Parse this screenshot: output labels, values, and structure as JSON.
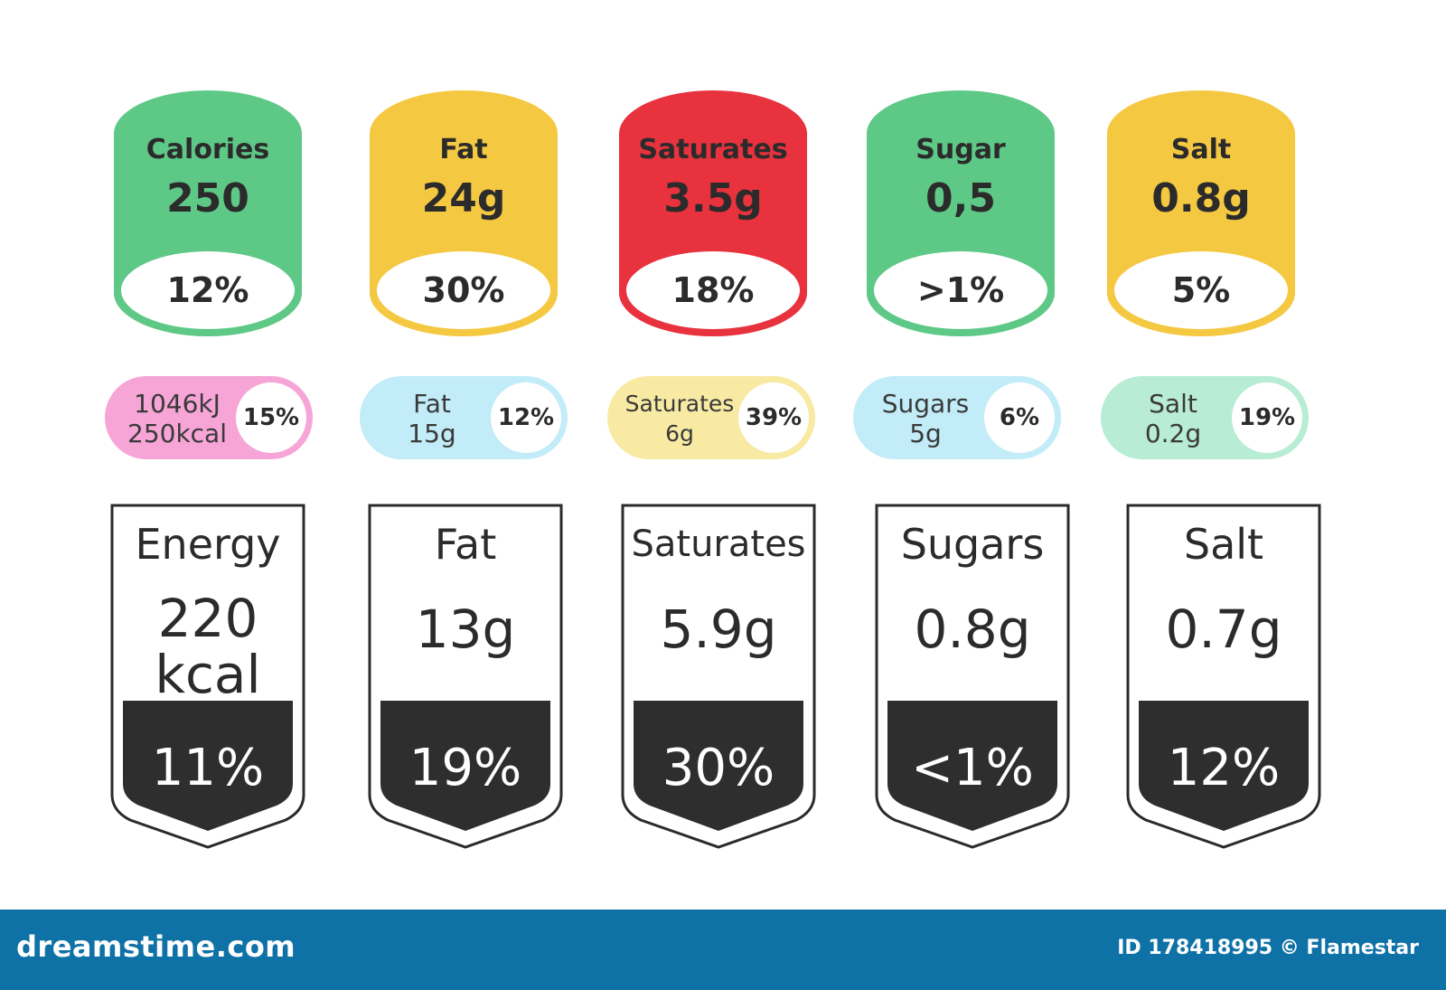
{
  "colors": {
    "green": "#5ec886",
    "yellow": "#f5c842",
    "red": "#e8323e",
    "pink": "#f6a5d6",
    "light_blue": "#c2ecf8",
    "light_yellow": "#f8eaa3",
    "mint": "#b8ecd4",
    "dark_fill": "#2e2e2e",
    "footer_blue": "#0f72a6"
  },
  "colored_labels": [
    {
      "name": "Calories",
      "value": "250",
      "percent": "12%",
      "color": "green"
    },
    {
      "name": "Fat",
      "value": "24g",
      "percent": "30%",
      "color": "yellow"
    },
    {
      "name": "Saturates",
      "value": "3.5g",
      "percent": "18%",
      "color": "red"
    },
    {
      "name": "Sugar",
      "value": "0,5",
      "percent": ">1%",
      "color": "green"
    },
    {
      "name": "Salt",
      "value": "0.8g",
      "percent": "5%",
      "color": "yellow"
    }
  ],
  "pill_labels": [
    {
      "line1": "1046kJ",
      "line2": "250kcal",
      "percent": "15%",
      "color": "pink"
    },
    {
      "line1": "Fat",
      "line2": "15g",
      "percent": "12%",
      "color": "light_blue"
    },
    {
      "line1": "Saturates",
      "line2": "6g",
      "percent": "39%",
      "color": "light_yellow"
    },
    {
      "line1": "Sugars",
      "line2": "5g",
      "percent": "6%",
      "color": "light_blue"
    },
    {
      "line1": "Salt",
      "line2": "0.2g",
      "percent": "19%",
      "color": "mint"
    }
  ],
  "outline_labels": [
    {
      "name": "Energy",
      "value_line1": "220",
      "value_line2": "kcal",
      "percent": "11%"
    },
    {
      "name": "Fat",
      "value_line1": "13g",
      "value_line2": "",
      "percent": "19%"
    },
    {
      "name": "Saturates",
      "value_line1": "5.9g",
      "value_line2": "",
      "percent": "30%"
    },
    {
      "name": "Sugars",
      "value_line1": "0.8g",
      "value_line2": "",
      "percent": "<1%"
    },
    {
      "name": "Salt",
      "value_line1": "0.7g",
      "value_line2": "",
      "percent": "12%"
    }
  ],
  "footer": {
    "brand": "dreamstime.com",
    "credit": "ID 178418995 © Flamestar"
  }
}
